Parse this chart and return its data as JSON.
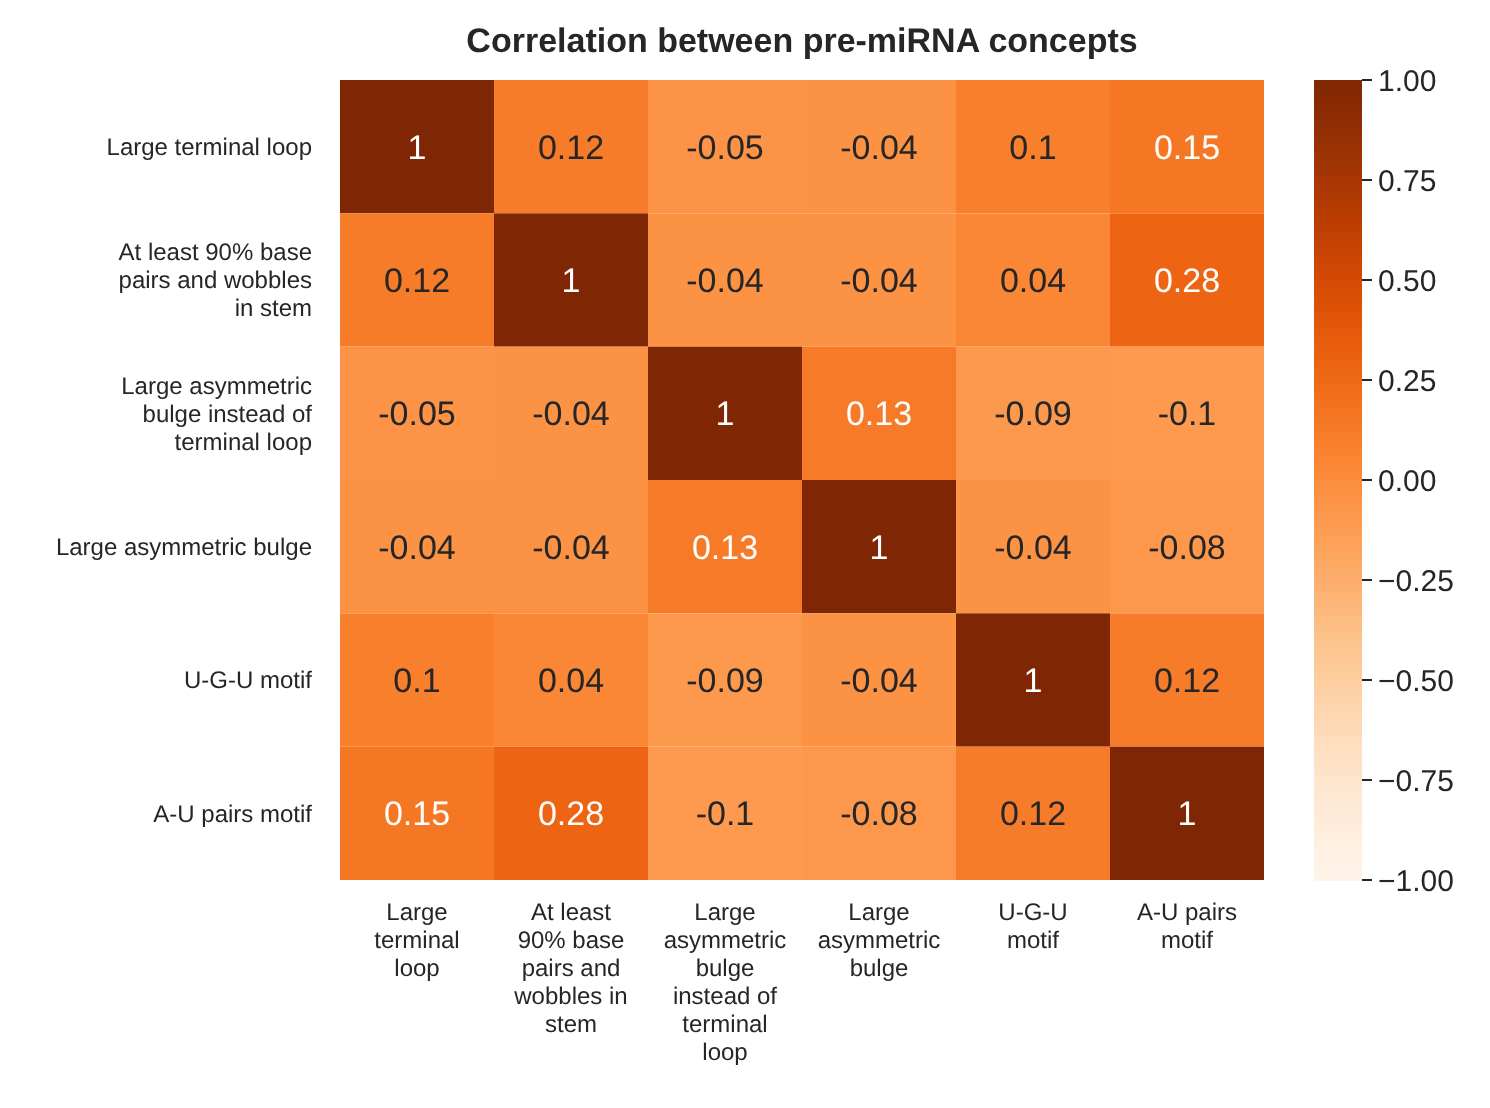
{
  "chart_data": {
    "type": "heatmap",
    "title": "Correlation between pre-miRNA concepts",
    "categories": [
      "Large terminal loop",
      "At least 90% base pairs and wobbles in stem",
      "Large asymmetric bulge instead of terminal loop",
      "Large asymmetric bulge",
      "U-G-U motif",
      "A-U pairs motif"
    ],
    "y_categories": [
      "Large terminal loop",
      "At least 90% base pairs and wobbles in stem",
      "Large asymmetric bulge instead of terminal loop",
      "Large asymmetric bulge",
      "U-G-U motif",
      "A-U pairs motif"
    ],
    "cells": [
      [
        1,
        0.12,
        -0.05,
        -0.04,
        0.1,
        0.15
      ],
      [
        0.12,
        1,
        -0.04,
        -0.04,
        0.04,
        0.28
      ],
      [
        -0.05,
        -0.04,
        1,
        0.13,
        -0.09,
        -0.1
      ],
      [
        -0.04,
        -0.04,
        0.13,
        1,
        -0.04,
        -0.08
      ],
      [
        0.1,
        0.04,
        -0.09,
        -0.04,
        1,
        0.12
      ],
      [
        0.15,
        0.28,
        -0.1,
        -0.08,
        0.12,
        1
      ]
    ],
    "data_labels": true,
    "clim": [
      -1,
      1
    ],
    "cticks": [
      {
        "value": 1,
        "label": "1.00"
      },
      {
        "value": 0.75,
        "label": "0.75"
      },
      {
        "value": 0.5,
        "label": "0.50"
      },
      {
        "value": 0.25,
        "label": "0.25"
      },
      {
        "value": 0,
        "label": "0.00"
      },
      {
        "value": -0.25,
        "label": "−0.25"
      },
      {
        "value": -0.5,
        "label": "−0.50"
      },
      {
        "value": -0.75,
        "label": "−0.75"
      },
      {
        "value": -1,
        "label": "−1.00"
      }
    ]
  }
}
